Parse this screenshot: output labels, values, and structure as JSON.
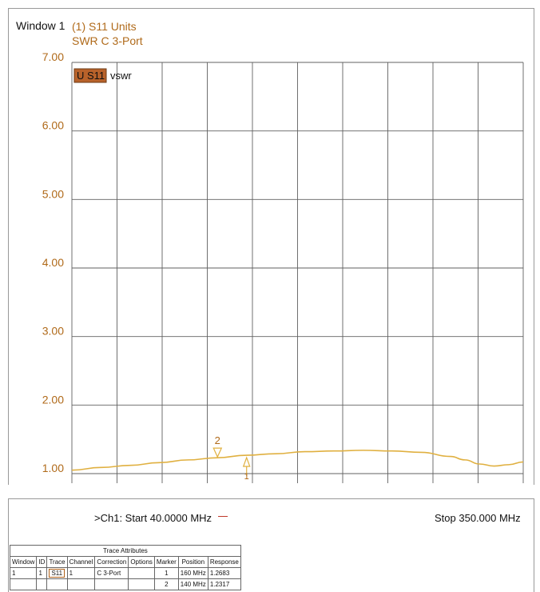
{
  "window_label": "Window 1",
  "trace_title_line1": "(1) S11 Units",
  "trace_title_line2": "SWR C  3-Port",
  "trace_badge": "U S11",
  "trace_format": "vswr",
  "colors": {
    "trace": "#e0b040",
    "accent": "#b06a1a",
    "badge_bg": "#b8622a",
    "grid": "#606060"
  },
  "footer": {
    "start_label": ">Ch1: Start  40.0000 MHz",
    "stop_label": "Stop  350.000 MHz"
  },
  "table": {
    "caption": "Trace Attributes",
    "headers": [
      "Window",
      "ID",
      "Trace",
      "Channel",
      "Correction",
      "Options",
      "Marker",
      "Position",
      "Response"
    ],
    "rows": [
      [
        "1",
        "1",
        "S11",
        "1",
        "C 3-Port",
        "",
        "1",
        "160 MHz",
        "1.2683"
      ],
      [
        "",
        "",
        "",
        "",
        "",
        "",
        "2",
        "140 MHz",
        "1.2317"
      ]
    ]
  },
  "chart_data": {
    "type": "line",
    "title": "",
    "xlabel": "",
    "ylabel": "",
    "xlim": [
      40,
      350
    ],
    "ylim": [
      1.0,
      7.0
    ],
    "yticks": [
      "1.00",
      "2.00",
      "3.00",
      "4.00",
      "5.00",
      "6.00",
      "7.00"
    ],
    "y_scale": "linear",
    "grid": true,
    "x_divisions": 10,
    "series": [
      {
        "x": [
          40,
          60,
          80,
          100,
          120,
          140,
          160,
          180,
          200,
          220,
          240,
          260,
          280,
          300,
          310,
          320,
          330,
          340,
          350
        ],
        "y": [
          1.05,
          1.09,
          1.12,
          1.16,
          1.2,
          1.2317,
          1.2683,
          1.29,
          1.32,
          1.33,
          1.34,
          1.33,
          1.31,
          1.25,
          1.2,
          1.14,
          1.11,
          1.13,
          1.17
        ]
      }
    ],
    "markers": [
      {
        "label": "1",
        "x": 160,
        "y": 1.2683
      },
      {
        "label": "2",
        "x": 140,
        "y": 1.2317
      }
    ]
  }
}
